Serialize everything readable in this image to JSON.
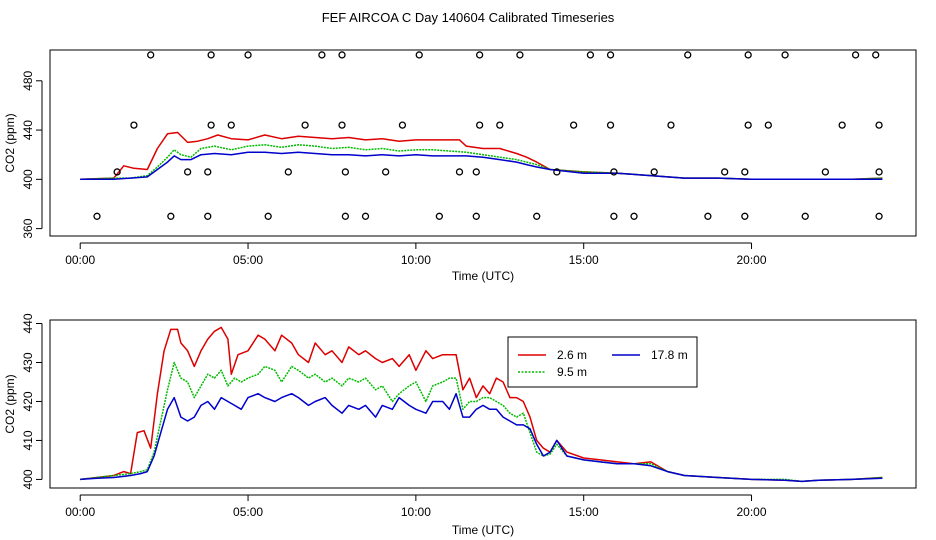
{
  "title": "FEF AIRCOA C  Day 140604  Calibrated Timeseries",
  "colors": {
    "s1": "#dd0000",
    "s2": "#00bb00",
    "s3": "#0000cc",
    "axis": "#000000"
  },
  "chart_data": [
    {
      "type": "line",
      "xlabel": "Time (UTC)",
      "ylabel": "CO2 (ppm)",
      "xlim": [
        -0.9,
        24.9
      ],
      "ylim": [
        354,
        505
      ],
      "xticks": [
        0,
        5,
        10,
        15,
        20
      ],
      "xtick_labels": [
        "00:00",
        "05:00",
        "10:00",
        "15:00",
        "20:00"
      ],
      "yticks": [
        360,
        400,
        440,
        480
      ],
      "ytick_labels": [
        "360",
        "400",
        "440",
        "480"
      ],
      "series": [
        {
          "name": "2.6 m",
          "color": "#dd0000",
          "x": [
            0,
            1,
            1.3,
            1.6,
            2.0,
            2.3,
            2.6,
            2.9,
            3.2,
            3.5,
            3.8,
            4.1,
            4.5,
            5.0,
            5.5,
            6.0,
            6.5,
            7.0,
            7.5,
            8.0,
            8.5,
            9.0,
            9.5,
            10.0,
            10.5,
            11.0,
            11.3,
            11.5,
            12.0,
            12.5,
            13.0,
            13.3,
            13.6,
            14.0,
            15.0,
            16.0,
            17.0,
            18.0,
            19.0,
            20.0,
            21.0,
            22.0,
            23.0,
            23.9
          ],
          "y": [
            400,
            401,
            411,
            409,
            408,
            425,
            437,
            438,
            430,
            431,
            433,
            436,
            433,
            432,
            436,
            433,
            435,
            434,
            433,
            434,
            432,
            433,
            431,
            432,
            432,
            432,
            432,
            427,
            425,
            425,
            421,
            418,
            414,
            408,
            406,
            405,
            403,
            401,
            401,
            400,
            400,
            400,
            400,
            401
          ]
        },
        {
          "name": "9.5 m",
          "color": "#00bb00",
          "x": [
            0,
            1,
            1.5,
            2.0,
            2.3,
            2.6,
            2.8,
            3.0,
            3.3,
            3.6,
            4.0,
            4.5,
            5.0,
            5.5,
            6.0,
            6.5,
            7.0,
            7.5,
            8.0,
            8.5,
            9.0,
            9.5,
            10.0,
            10.5,
            11.0,
            11.5,
            12.0,
            12.5,
            13.0,
            13.3,
            13.6,
            14.0,
            15.0,
            16.0,
            17.0,
            18.0,
            19.0,
            20.0,
            21.0,
            22.0,
            23.0,
            23.9
          ],
          "y": [
            400,
            401,
            401,
            403,
            410,
            418,
            424,
            420,
            418,
            425,
            427,
            424,
            427,
            428,
            426,
            428,
            427,
            425,
            426,
            424,
            425,
            423,
            424,
            424,
            423,
            422,
            420,
            418,
            416,
            414,
            412,
            408,
            406,
            405,
            403,
            401,
            401,
            400,
            400,
            400,
            400,
            401
          ]
        },
        {
          "name": "17.8 m",
          "color": "#0000cc",
          "x": [
            0,
            1,
            1.5,
            2.0,
            2.3,
            2.6,
            2.8,
            3.0,
            3.3,
            3.6,
            4.0,
            4.5,
            5.0,
            5.5,
            6.0,
            6.5,
            7.0,
            7.5,
            8.0,
            8.5,
            9.0,
            9.5,
            10.0,
            10.5,
            11.0,
            11.5,
            12.0,
            12.5,
            13.0,
            13.3,
            13.6,
            14.0,
            15.0,
            16.0,
            17.0,
            18.0,
            19.0,
            20.0,
            21.0,
            22.0,
            23.0,
            23.9
          ],
          "y": [
            400,
            400,
            401,
            402,
            408,
            414,
            419,
            416,
            416,
            420,
            421,
            420,
            422,
            422,
            421,
            422,
            421,
            420,
            420,
            419,
            420,
            419,
            420,
            419,
            419,
            419,
            418,
            416,
            414,
            412,
            410,
            408,
            405,
            405,
            403,
            401,
            401,
            400,
            400,
            400,
            400,
            400
          ]
        }
      ],
      "markers": {
        "shape": "circle-open",
        "points": [
          [
            0.5,
            370
          ],
          [
            2.7,
            370
          ],
          [
            3.8,
            370
          ],
          [
            5.6,
            370
          ],
          [
            7.9,
            370
          ],
          [
            8.5,
            370
          ],
          [
            10.7,
            370
          ],
          [
            11.8,
            370
          ],
          [
            13.6,
            370
          ],
          [
            15.9,
            370
          ],
          [
            16.5,
            370
          ],
          [
            18.7,
            370
          ],
          [
            19.8,
            370
          ],
          [
            21.6,
            370
          ],
          [
            23.8,
            370
          ],
          [
            1.1,
            406
          ],
          [
            3.2,
            406
          ],
          [
            3.8,
            406
          ],
          [
            6.2,
            406
          ],
          [
            7.9,
            406
          ],
          [
            9.1,
            406
          ],
          [
            11.3,
            406
          ],
          [
            11.8,
            406
          ],
          [
            14.2,
            406
          ],
          [
            15.9,
            406
          ],
          [
            17.1,
            406
          ],
          [
            19.2,
            406
          ],
          [
            19.8,
            406
          ],
          [
            22.2,
            406
          ],
          [
            23.8,
            406
          ],
          [
            1.6,
            444
          ],
          [
            3.9,
            444
          ],
          [
            4.5,
            444
          ],
          [
            6.7,
            444
          ],
          [
            7.8,
            444
          ],
          [
            9.6,
            444
          ],
          [
            11.9,
            444
          ],
          [
            12.5,
            444
          ],
          [
            14.7,
            444
          ],
          [
            15.8,
            444
          ],
          [
            17.6,
            444
          ],
          [
            19.9,
            444
          ],
          [
            20.5,
            444
          ],
          [
            22.7,
            444
          ],
          [
            23.8,
            444
          ],
          [
            2.1,
            501
          ],
          [
            3.9,
            501
          ],
          [
            5.0,
            501
          ],
          [
            7.2,
            501
          ],
          [
            7.8,
            501
          ],
          [
            10.1,
            501
          ],
          [
            11.9,
            501
          ],
          [
            13.1,
            501
          ],
          [
            15.2,
            501
          ],
          [
            15.8,
            501
          ],
          [
            18.1,
            501
          ],
          [
            19.9,
            501
          ],
          [
            21.0,
            501
          ],
          [
            23.1,
            501
          ],
          [
            23.7,
            501
          ]
        ]
      }
    },
    {
      "type": "line",
      "xlabel": "Time (UTC)",
      "ylabel": "CO2 (ppm)",
      "xlim": [
        -0.9,
        24.9
      ],
      "ylim": [
        397.8,
        440.9
      ],
      "xticks": [
        0,
        5,
        10,
        15,
        20
      ],
      "xtick_labels": [
        "00:00",
        "05:00",
        "10:00",
        "15:00",
        "20:00"
      ],
      "yticks": [
        400,
        410,
        420,
        430,
        440
      ],
      "ytick_labels": [
        "400",
        "410",
        "420",
        "430",
        "440"
      ],
      "legend": {
        "position": "top-right",
        "entries": [
          "2.6 m",
          "17.8 m",
          "9.5 m"
        ]
      },
      "series": [
        {
          "name": "2.6 m",
          "color": "#dd0000",
          "x": [
            0,
            0.5,
            1.0,
            1.3,
            1.5,
            1.7,
            1.9,
            2.1,
            2.3,
            2.5,
            2.7,
            2.9,
            3.0,
            3.2,
            3.4,
            3.6,
            3.8,
            4.0,
            4.2,
            4.4,
            4.5,
            4.7,
            5.0,
            5.3,
            5.5,
            5.8,
            6.0,
            6.3,
            6.5,
            6.8,
            7.0,
            7.3,
            7.5,
            7.8,
            8.0,
            8.3,
            8.5,
            8.8,
            9.0,
            9.3,
            9.5,
            9.8,
            10.0,
            10.3,
            10.5,
            10.8,
            11.0,
            11.2,
            11.4,
            11.6,
            11.8,
            12.0,
            12.2,
            12.4,
            12.6,
            12.8,
            13.0,
            13.2,
            13.4,
            13.6,
            13.8,
            14.0,
            14.2,
            14.5,
            15.0,
            15.5,
            16.0,
            16.5,
            17.0,
            17.5,
            18.0,
            19.0,
            20.0,
            21.0,
            21.5,
            22.0,
            23.0,
            23.9
          ],
          "y": [
            400,
            400.5,
            401,
            402,
            401.5,
            412,
            412.5,
            408,
            422,
            433,
            438.5,
            438.5,
            435,
            433,
            429,
            433,
            436,
            438,
            439,
            436,
            427,
            432,
            433,
            437,
            436,
            433,
            437,
            435,
            432,
            430,
            435,
            432,
            433,
            430,
            434,
            432,
            433,
            431,
            430,
            431,
            429,
            432,
            428,
            433,
            431,
            432,
            432,
            432,
            423,
            426,
            421,
            424,
            422,
            426,
            425,
            421,
            421,
            420,
            416,
            410,
            408,
            407,
            410,
            407,
            405.5,
            405,
            404.5,
            404,
            404.5,
            402,
            401,
            400.5,
            400,
            399.8,
            399.5,
            399.8,
            400,
            400.5
          ]
        },
        {
          "name": "9.5 m",
          "color": "#00bb00",
          "x": [
            0,
            0.5,
            1.0,
            1.5,
            1.8,
            2.0,
            2.2,
            2.4,
            2.6,
            2.8,
            3.0,
            3.2,
            3.4,
            3.6,
            3.8,
            4.0,
            4.2,
            4.4,
            4.6,
            4.8,
            5.0,
            5.3,
            5.5,
            5.8,
            6.0,
            6.3,
            6.5,
            6.8,
            7.0,
            7.3,
            7.5,
            7.8,
            8.0,
            8.3,
            8.5,
            8.8,
            9.0,
            9.3,
            9.5,
            9.8,
            10.0,
            10.3,
            10.5,
            10.8,
            11.0,
            11.2,
            11.4,
            11.6,
            11.8,
            12.0,
            12.2,
            12.4,
            12.6,
            12.8,
            13.0,
            13.2,
            13.4,
            13.6,
            13.8,
            14.0,
            14.2,
            14.5,
            15.0,
            15.5,
            16.0,
            16.5,
            17.0,
            17.5,
            18.0,
            19.0,
            20.0,
            21.0,
            21.5,
            22.0,
            23.0,
            23.9
          ],
          "y": [
            400,
            400.5,
            401,
            401.5,
            402,
            402.5,
            407,
            415,
            423,
            430,
            426,
            425,
            421,
            424,
            427,
            426,
            428,
            424,
            426,
            425,
            426,
            427,
            429,
            428,
            425,
            429,
            428,
            426,
            427,
            425,
            426,
            424,
            426,
            425,
            426,
            423,
            424,
            420,
            422,
            424,
            425,
            420,
            424,
            425,
            426,
            426,
            418,
            420,
            420,
            421,
            421,
            420,
            419,
            417,
            416,
            417,
            412,
            407,
            406,
            406.5,
            409,
            406,
            405,
            404.5,
            404,
            404,
            404,
            402,
            401,
            400.5,
            400,
            400,
            399.5,
            399.8,
            400,
            400.5
          ]
        },
        {
          "name": "17.8 m",
          "color": "#0000cc",
          "x": [
            0,
            0.5,
            1.0,
            1.5,
            1.8,
            2.0,
            2.2,
            2.4,
            2.6,
            2.8,
            3.0,
            3.2,
            3.4,
            3.6,
            3.8,
            4.0,
            4.2,
            4.4,
            4.6,
            4.8,
            5.0,
            5.3,
            5.5,
            5.8,
            6.0,
            6.3,
            6.5,
            6.8,
            7.0,
            7.3,
            7.5,
            7.8,
            8.0,
            8.3,
            8.5,
            8.8,
            9.0,
            9.3,
            9.5,
            9.8,
            10.0,
            10.3,
            10.5,
            10.8,
            11.0,
            11.2,
            11.4,
            11.6,
            11.8,
            12.0,
            12.2,
            12.4,
            12.6,
            12.8,
            13.0,
            13.2,
            13.4,
            13.6,
            13.8,
            14.0,
            14.2,
            14.5,
            15.0,
            15.5,
            16.0,
            16.5,
            17.0,
            17.5,
            18.0,
            19.0,
            20.0,
            21.0,
            21.5,
            22.0,
            23.0,
            23.9
          ],
          "y": [
            400,
            400.3,
            400.5,
            401,
            401.5,
            402,
            406,
            412,
            418,
            421,
            416,
            415,
            416,
            419,
            420,
            418,
            421,
            420,
            419,
            418,
            421,
            422,
            421,
            420,
            421,
            422,
            421,
            419,
            420,
            421,
            419,
            417,
            419,
            418,
            419,
            416,
            419,
            418,
            421,
            419,
            418,
            417,
            420,
            420,
            418,
            422,
            416,
            416,
            418,
            419,
            418,
            418,
            416,
            415,
            414,
            414,
            413,
            409,
            406,
            407,
            410,
            406,
            405,
            404.5,
            404,
            404,
            403.5,
            402,
            401,
            400.5,
            400,
            399.8,
            399.5,
            399.8,
            400,
            400.3
          ]
        }
      ]
    }
  ]
}
